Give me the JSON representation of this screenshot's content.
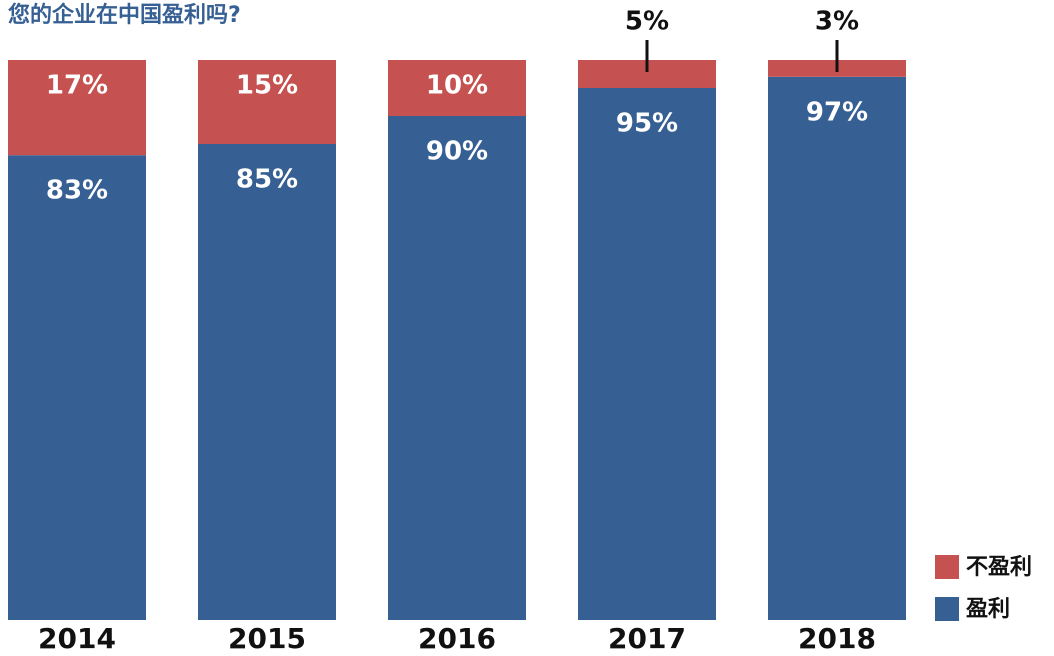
{
  "chart_data": {
    "type": "bar",
    "stacked": true,
    "title": "您的企业在中国盈利吗?",
    "categories": [
      "2014",
      "2015",
      "2016",
      "2017",
      "2018"
    ],
    "ylim": [
      0,
      100
    ],
    "series": [
      {
        "name": "盈利",
        "color": "#365f94",
        "values": [
          83,
          85,
          90,
          95,
          97
        ],
        "value_labels": [
          "83%",
          "85%",
          "90%",
          "95%",
          "97%"
        ]
      },
      {
        "name": "不盈利",
        "color": "#c55250",
        "values": [
          17,
          15,
          10,
          5,
          3
        ],
        "value_labels": [
          "17%",
          "15%",
          "10%",
          "5%",
          "3%"
        ]
      }
    ]
  }
}
